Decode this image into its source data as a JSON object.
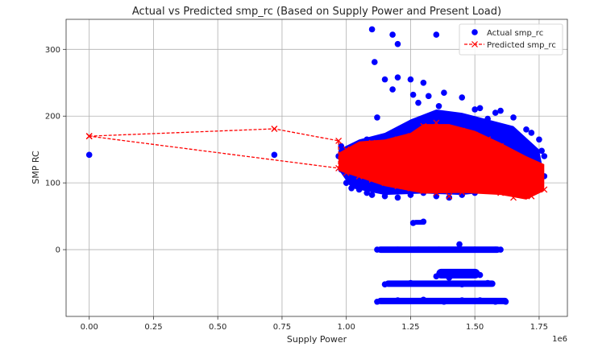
{
  "chart_data": {
    "type": "scatter",
    "title": "Actual vs Predicted smp_rc (Based on Supply Power and Present Load)",
    "xlabel": "Supply Power",
    "ylabel": "SMP RC",
    "x_offset_label": "1e6",
    "xlim": [
      -0.09,
      1.86
    ],
    "ylim": [
      -100,
      345
    ],
    "x_ticks": [
      0.0,
      0.25,
      0.5,
      0.75,
      1.0,
      1.25,
      1.5,
      1.75
    ],
    "x_tick_labels": [
      "0.00",
      "0.25",
      "0.50",
      "0.75",
      "1.00",
      "1.25",
      "1.50",
      "1.75"
    ],
    "y_ticks": [
      0,
      100,
      200,
      300
    ],
    "y_tick_labels": [
      "0",
      "100",
      "200",
      "300"
    ],
    "grid": true,
    "legend": {
      "position": "top-right",
      "entries": [
        "Actual smp_rc",
        "Predicted smp_rc"
      ]
    },
    "series": [
      {
        "name": "Actual smp_rc",
        "style": "markers",
        "marker": "circle",
        "color": "#0000ff",
        "points": [
          [
            0.0,
            142
          ],
          [
            0.72,
            142
          ],
          [
            1.1,
            330
          ],
          [
            1.18,
            322
          ],
          [
            1.2,
            308
          ],
          [
            1.35,
            322
          ],
          [
            1.11,
            281
          ],
          [
            1.15,
            255
          ],
          [
            1.2,
            258
          ],
          [
            1.25,
            255
          ],
          [
            1.3,
            250
          ],
          [
            1.18,
            240
          ],
          [
            1.26,
            232
          ],
          [
            1.32,
            230
          ],
          [
            1.38,
            235
          ],
          [
            1.45,
            228
          ],
          [
            1.28,
            220
          ],
          [
            1.36,
            215
          ],
          [
            1.5,
            210
          ],
          [
            1.52,
            212
          ],
          [
            1.58,
            205
          ],
          [
            1.6,
            208
          ],
          [
            1.65,
            198
          ],
          [
            1.55,
            196
          ],
          [
            1.12,
            198
          ],
          [
            1.08,
            165
          ],
          [
            1.6,
            185
          ],
          [
            1.7,
            180
          ],
          [
            1.72,
            175
          ],
          [
            1.75,
            165
          ],
          [
            1.7,
            158
          ],
          [
            1.76,
            148
          ],
          [
            1.77,
            140
          ],
          [
            1.75,
            125
          ],
          [
            1.77,
            110
          ],
          [
            1.72,
            100
          ],
          [
            1.74,
            88
          ],
          [
            0.98,
            155
          ],
          [
            0.97,
            140
          ],
          [
            0.98,
            120
          ],
          [
            1.0,
            100
          ],
          [
            1.02,
            92
          ],
          [
            1.05,
            90
          ],
          [
            1.08,
            85
          ],
          [
            1.1,
            82
          ],
          [
            1.15,
            80
          ],
          [
            1.2,
            78
          ],
          [
            1.25,
            82
          ],
          [
            1.3,
            85
          ],
          [
            1.35,
            80
          ],
          [
            1.4,
            78
          ],
          [
            1.45,
            82
          ],
          [
            1.5,
            85
          ],
          [
            1.55,
            90
          ],
          [
            1.6,
            88
          ],
          [
            1.65,
            92
          ],
          [
            1.26,
            40
          ],
          [
            1.3,
            42
          ],
          [
            1.12,
            0
          ],
          [
            1.2,
            0
          ],
          [
            1.28,
            0
          ],
          [
            1.36,
            0
          ],
          [
            1.44,
            8
          ],
          [
            1.5,
            0
          ],
          [
            1.58,
            0
          ],
          [
            1.6,
            0
          ],
          [
            1.35,
            -40
          ],
          [
            1.4,
            -42
          ],
          [
            1.48,
            -35
          ],
          [
            1.52,
            -38
          ],
          [
            1.15,
            -52
          ],
          [
            1.25,
            -50
          ],
          [
            1.45,
            -52
          ],
          [
            1.55,
            -50
          ],
          [
            1.12,
            -78
          ],
          [
            1.2,
            -76
          ],
          [
            1.3,
            -75
          ],
          [
            1.38,
            -78
          ],
          [
            1.45,
            -76
          ],
          [
            1.52,
            -76
          ],
          [
            1.58,
            -78
          ],
          [
            1.62,
            -78
          ]
        ]
      },
      {
        "name": "Predicted smp_rc",
        "style": "line+markers",
        "marker": "x",
        "line": "dashed",
        "color": "#ff0000",
        "points": [
          [
            0.0,
            170
          ],
          [
            0.72,
            181
          ],
          [
            0.97,
            163
          ],
          [
            0.97,
            122
          ],
          [
            0.0,
            170
          ]
        ],
        "cloud_points": [
          [
            1.0,
            150
          ],
          [
            1.05,
            145
          ],
          [
            1.1,
            160
          ],
          [
            1.15,
            155
          ],
          [
            1.2,
            165
          ],
          [
            1.25,
            170
          ],
          [
            1.3,
            185
          ],
          [
            1.35,
            190
          ],
          [
            1.4,
            182
          ],
          [
            1.45,
            178
          ],
          [
            1.5,
            172
          ],
          [
            1.55,
            165
          ],
          [
            1.6,
            155
          ],
          [
            1.65,
            140
          ],
          [
            1.7,
            130
          ],
          [
            1.75,
            125
          ],
          [
            1.77,
            90
          ],
          [
            1.72,
            80
          ],
          [
            1.65,
            78
          ],
          [
            1.6,
            85
          ],
          [
            1.55,
            88
          ],
          [
            1.5,
            90
          ],
          [
            1.45,
            86
          ],
          [
            1.4,
            80
          ],
          [
            1.35,
            85
          ],
          [
            1.3,
            88
          ],
          [
            1.25,
            92
          ],
          [
            1.2,
            95
          ],
          [
            1.15,
            100
          ],
          [
            1.1,
            105
          ],
          [
            1.05,
            110
          ],
          [
            1.0,
            115
          ],
          [
            1.0,
            130
          ],
          [
            1.3,
            130
          ],
          [
            1.4,
            120
          ],
          [
            1.5,
            140
          ],
          [
            1.2,
            125
          ],
          [
            1.6,
            110
          ],
          [
            1.35,
            150
          ],
          [
            1.45,
            100
          ]
        ]
      }
    ]
  }
}
